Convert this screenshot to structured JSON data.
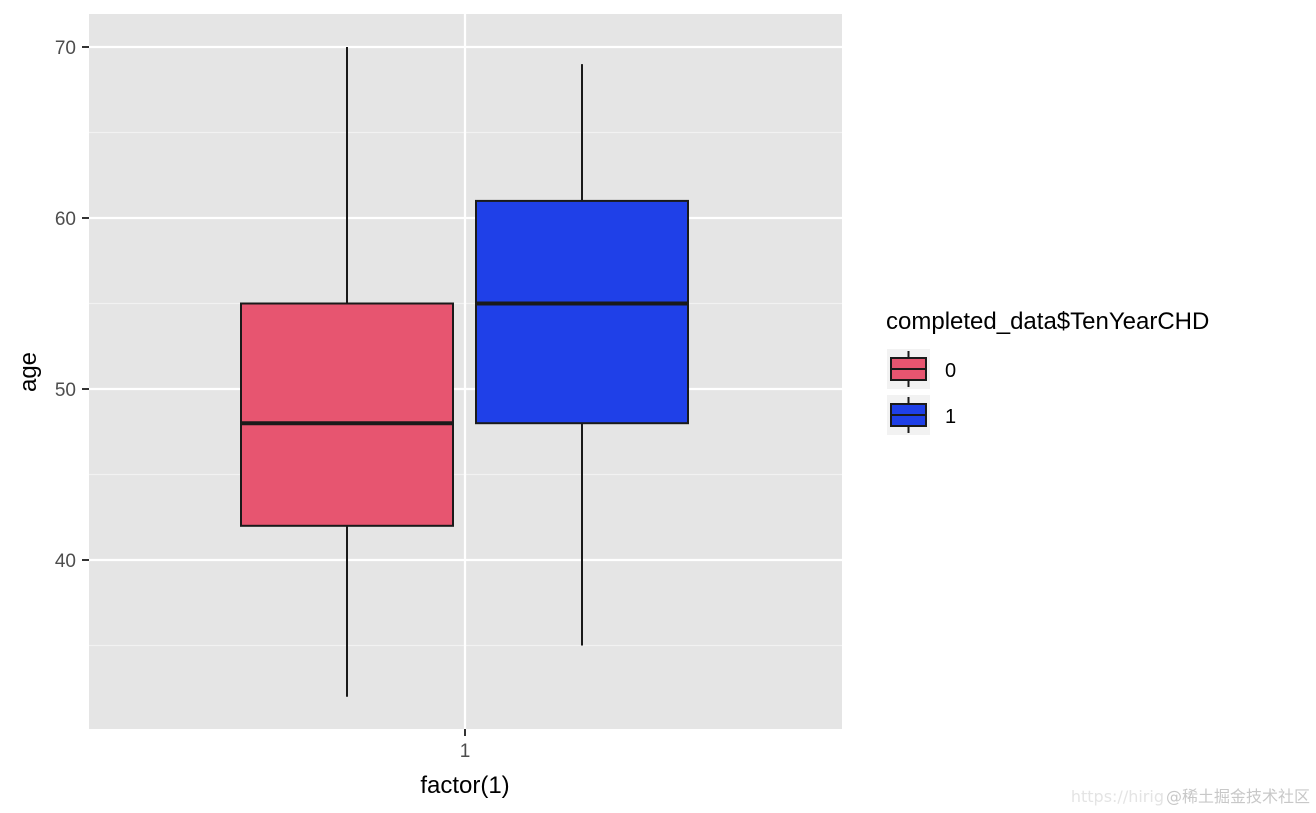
{
  "chart_data": {
    "type": "boxplot",
    "xlabel": "factor(1)",
    "ylabel": "age",
    "categories": [
      "1"
    ],
    "ylim": [
      30,
      72
    ],
    "y_ticks": [
      40,
      50,
      60,
      70
    ],
    "grid": true,
    "legend": {
      "title": "completed_data$TenYearCHD",
      "placement": "right",
      "entries": [
        {
          "label": "0",
          "color": "#E75570"
        },
        {
          "label": "1",
          "color": "#1F40E8"
        }
      ]
    },
    "series": [
      {
        "group": "0",
        "color": "#E75570",
        "min": 32,
        "q1": 42,
        "median": 48,
        "q3": 55,
        "max": 70
      },
      {
        "group": "1",
        "color": "#1F40E8",
        "min": 35,
        "q1": 48,
        "median": 55,
        "q3": 61,
        "max": 69
      }
    ]
  },
  "watermark": {
    "site": "https://hirig",
    "text": "@稀土掘金技术社区"
  }
}
